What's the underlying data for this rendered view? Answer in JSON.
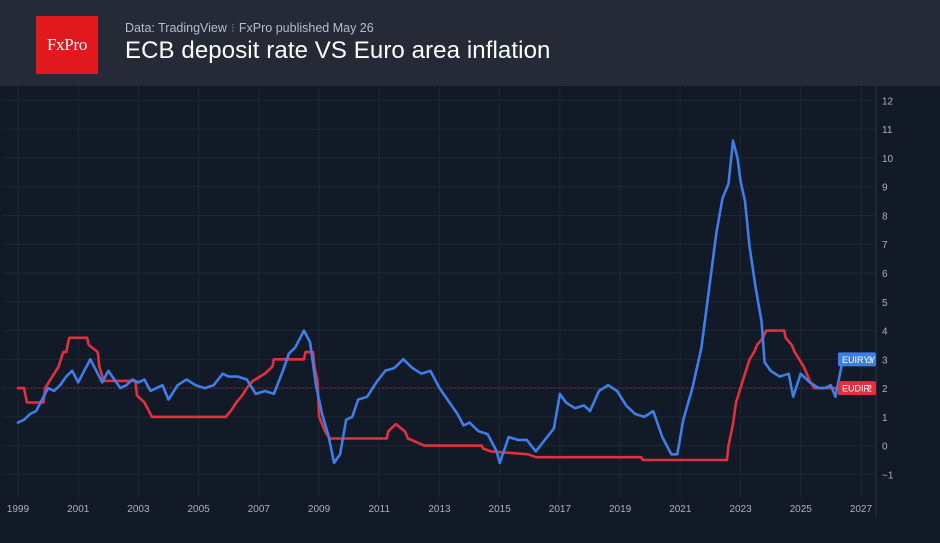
{
  "header": {
    "logo_text": "FxPro",
    "source_text": "Data: TradingView",
    "separator": "⁝",
    "published_text": "FxPro published May 26",
    "title": "ECB deposit rate VS Euro area inflation"
  },
  "colors": {
    "background": "#131a27",
    "header_bg": "#252a36",
    "logo_bg": "#e1191e",
    "series_inflation": "#3d7ee8",
    "series_rate": "#e2303f",
    "grid": "#1f2735",
    "tick_text": "#aab0bb"
  },
  "chart_data": {
    "type": "line",
    "title": "ECB deposit rate VS Euro area inflation",
    "xlabel": "",
    "ylabel": "",
    "xlim": [
      1999,
      2027.5
    ],
    "ylim": [
      -1.75,
      12.5
    ],
    "x_ticks": [
      1999,
      2001,
      2003,
      2005,
      2007,
      2009,
      2011,
      2013,
      2015,
      2017,
      2019,
      2021,
      2023,
      2025,
      2027
    ],
    "y_ticks": [
      -1,
      0,
      1,
      2,
      3,
      4,
      5,
      6,
      7,
      8,
      9,
      10,
      11,
      12
    ],
    "y_axis_position": "right",
    "grid": true,
    "series": [
      {
        "name": "EUIRYY",
        "last_value_label": "3",
        "color": "#3d7ee8",
        "points": [
          [
            1999.0,
            0.8
          ],
          [
            1999.2,
            0.9
          ],
          [
            1999.4,
            1.1
          ],
          [
            1999.6,
            1.2
          ],
          [
            1999.8,
            1.6
          ],
          [
            2000.0,
            2.0
          ],
          [
            2000.2,
            1.9
          ],
          [
            2000.4,
            2.1
          ],
          [
            2000.6,
            2.4
          ],
          [
            2000.8,
            2.6
          ],
          [
            2001.0,
            2.2
          ],
          [
            2001.2,
            2.6
          ],
          [
            2001.4,
            3.0
          ],
          [
            2001.6,
            2.6
          ],
          [
            2001.8,
            2.2
          ],
          [
            2002.0,
            2.6
          ],
          [
            2002.2,
            2.3
          ],
          [
            2002.4,
            2.0
          ],
          [
            2002.6,
            2.1
          ],
          [
            2002.8,
            2.3
          ],
          [
            2003.0,
            2.2
          ],
          [
            2003.2,
            2.3
          ],
          [
            2003.4,
            1.9
          ],
          [
            2003.6,
            2.0
          ],
          [
            2003.8,
            2.1
          ],
          [
            2004.0,
            1.6
          ],
          [
            2004.3,
            2.1
          ],
          [
            2004.6,
            2.3
          ],
          [
            2004.9,
            2.1
          ],
          [
            2005.2,
            2.0
          ],
          [
            2005.5,
            2.1
          ],
          [
            2005.8,
            2.5
          ],
          [
            2006.0,
            2.4
          ],
          [
            2006.3,
            2.4
          ],
          [
            2006.6,
            2.3
          ],
          [
            2006.9,
            1.8
          ],
          [
            2007.2,
            1.9
          ],
          [
            2007.5,
            1.8
          ],
          [
            2007.8,
            2.6
          ],
          [
            2008.0,
            3.2
          ],
          [
            2008.2,
            3.4
          ],
          [
            2008.5,
            4.0
          ],
          [
            2008.7,
            3.6
          ],
          [
            2008.9,
            2.1
          ],
          [
            2009.1,
            1.1
          ],
          [
            2009.3,
            0.4
          ],
          [
            2009.5,
            -0.6
          ],
          [
            2009.7,
            -0.3
          ],
          [
            2009.9,
            0.9
          ],
          [
            2010.1,
            1.0
          ],
          [
            2010.3,
            1.6
          ],
          [
            2010.6,
            1.7
          ],
          [
            2010.9,
            2.2
          ],
          [
            2011.2,
            2.6
          ],
          [
            2011.5,
            2.7
          ],
          [
            2011.8,
            3.0
          ],
          [
            2012.1,
            2.7
          ],
          [
            2012.4,
            2.5
          ],
          [
            2012.7,
            2.6
          ],
          [
            2013.0,
            2.0
          ],
          [
            2013.2,
            1.7
          ],
          [
            2013.4,
            1.4
          ],
          [
            2013.6,
            1.1
          ],
          [
            2013.8,
            0.7
          ],
          [
            2014.0,
            0.8
          ],
          [
            2014.3,
            0.5
          ],
          [
            2014.6,
            0.4
          ],
          [
            2014.9,
            -0.2
          ],
          [
            2015.0,
            -0.6
          ],
          [
            2015.3,
            0.3
          ],
          [
            2015.6,
            0.2
          ],
          [
            2015.9,
            0.2
          ],
          [
            2016.2,
            -0.2
          ],
          [
            2016.5,
            0.2
          ],
          [
            2016.8,
            0.6
          ],
          [
            2017.0,
            1.8
          ],
          [
            2017.2,
            1.5
          ],
          [
            2017.5,
            1.3
          ],
          [
            2017.8,
            1.4
          ],
          [
            2018.0,
            1.2
          ],
          [
            2018.3,
            1.9
          ],
          [
            2018.6,
            2.1
          ],
          [
            2018.9,
            1.9
          ],
          [
            2019.2,
            1.4
          ],
          [
            2019.5,
            1.1
          ],
          [
            2019.8,
            1.0
          ],
          [
            2020.1,
            1.2
          ],
          [
            2020.4,
            0.3
          ],
          [
            2020.7,
            -0.3
          ],
          [
            2020.9,
            -0.3
          ],
          [
            2021.1,
            0.9
          ],
          [
            2021.4,
            2.0
          ],
          [
            2021.7,
            3.4
          ],
          [
            2021.9,
            5.0
          ],
          [
            2022.2,
            7.4
          ],
          [
            2022.4,
            8.6
          ],
          [
            2022.6,
            9.1
          ],
          [
            2022.75,
            10.6
          ],
          [
            2022.9,
            10.0
          ],
          [
            2023.0,
            9.2
          ],
          [
            2023.15,
            8.5
          ],
          [
            2023.3,
            6.9
          ],
          [
            2023.5,
            5.5
          ],
          [
            2023.7,
            4.3
          ],
          [
            2023.8,
            2.9
          ],
          [
            2024.0,
            2.6
          ],
          [
            2024.3,
            2.4
          ],
          [
            2024.6,
            2.5
          ],
          [
            2024.75,
            1.7
          ],
          [
            2025.0,
            2.5
          ],
          [
            2025.3,
            2.2
          ],
          [
            2025.6,
            2.0
          ],
          [
            2025.8,
            2.0
          ],
          [
            2026.0,
            2.1
          ],
          [
            2026.15,
            1.7
          ],
          [
            2026.4,
            3.0
          ]
        ]
      },
      {
        "name": "EUDIR",
        "last_value_label": "2",
        "color": "#e2303f",
        "points": [
          [
            1999.0,
            2.0
          ],
          [
            1999.2,
            2.0
          ],
          [
            1999.3,
            1.5
          ],
          [
            1999.85,
            1.5
          ],
          [
            1999.9,
            2.0
          ],
          [
            2000.05,
            2.25
          ],
          [
            2000.2,
            2.5
          ],
          [
            2000.35,
            2.75
          ],
          [
            2000.5,
            3.25
          ],
          [
            2000.6,
            3.25
          ],
          [
            2000.7,
            3.75
          ],
          [
            2001.3,
            3.75
          ],
          [
            2001.35,
            3.5
          ],
          [
            2001.65,
            3.25
          ],
          [
            2001.7,
            2.75
          ],
          [
            2001.85,
            2.25
          ],
          [
            2002.9,
            2.25
          ],
          [
            2002.95,
            1.75
          ],
          [
            2003.2,
            1.5
          ],
          [
            2003.45,
            1.0
          ],
          [
            2005.9,
            1.0
          ],
          [
            2006.1,
            1.25
          ],
          [
            2006.25,
            1.5
          ],
          [
            2006.45,
            1.75
          ],
          [
            2006.6,
            2.0
          ],
          [
            2006.8,
            2.25
          ],
          [
            2007.2,
            2.5
          ],
          [
            2007.45,
            2.75
          ],
          [
            2007.5,
            3.0
          ],
          [
            2008.5,
            3.0
          ],
          [
            2008.55,
            3.25
          ],
          [
            2008.8,
            3.25
          ],
          [
            2008.85,
            2.75
          ],
          [
            2008.95,
            2.25
          ],
          [
            2009.0,
            1.0
          ],
          [
            2009.2,
            0.5
          ],
          [
            2009.35,
            0.25
          ],
          [
            2011.25,
            0.25
          ],
          [
            2011.3,
            0.5
          ],
          [
            2011.55,
            0.75
          ],
          [
            2011.85,
            0.5
          ],
          [
            2011.95,
            0.25
          ],
          [
            2012.5,
            0.0
          ],
          [
            2014.4,
            0.0
          ],
          [
            2014.45,
            -0.1
          ],
          [
            2014.7,
            -0.2
          ],
          [
            2015.95,
            -0.3
          ],
          [
            2016.2,
            -0.4
          ],
          [
            2019.7,
            -0.4
          ],
          [
            2019.75,
            -0.5
          ],
          [
            2022.55,
            -0.5
          ],
          [
            2022.6,
            0.0
          ],
          [
            2022.75,
            0.75
          ],
          [
            2022.85,
            1.5
          ],
          [
            2023.0,
            2.0
          ],
          [
            2023.15,
            2.5
          ],
          [
            2023.3,
            3.0
          ],
          [
            2023.45,
            3.25
          ],
          [
            2023.55,
            3.5
          ],
          [
            2023.75,
            3.75
          ],
          [
            2023.85,
            4.0
          ],
          [
            2024.45,
            4.0
          ],
          [
            2024.5,
            3.75
          ],
          [
            2024.7,
            3.5
          ],
          [
            2024.8,
            3.25
          ],
          [
            2024.95,
            3.0
          ],
          [
            2025.1,
            2.75
          ],
          [
            2025.2,
            2.5
          ],
          [
            2025.3,
            2.25
          ],
          [
            2025.45,
            2.0
          ],
          [
            2026.4,
            2.0
          ]
        ]
      }
    ]
  }
}
